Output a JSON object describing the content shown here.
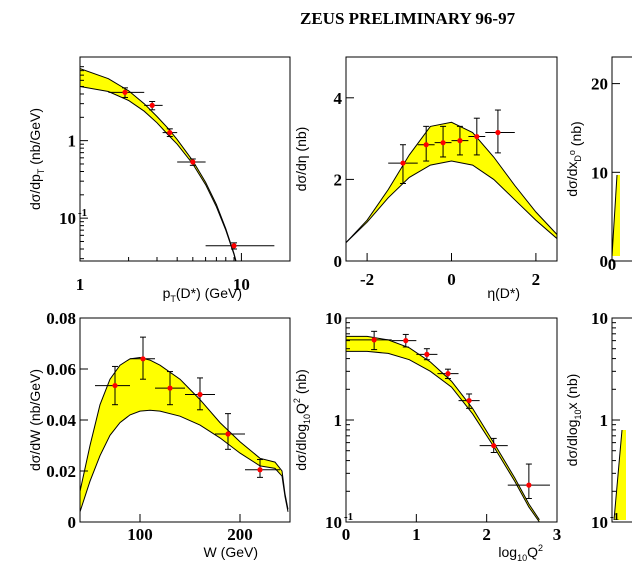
{
  "title": "ZEUS PRELIMINARY 96-97",
  "colors": {
    "band": "#ffff00",
    "point": "#ff0000",
    "line": "#000000"
  },
  "chart_data": [
    {
      "id": "pt",
      "type": "scatter",
      "ylabel_main": "dσ/dp",
      "ylabel_sub": "T",
      "ylabel_end": " (nb/GeV)",
      "xlabel_main": "p",
      "xlabel_sub": "T",
      "xlabel_end": "(D*) (GeV)",
      "xscale": "log",
      "yscale": "log",
      "xlim": [
        1,
        20
      ],
      "ylim": [
        0.028,
        12
      ],
      "xticks": [
        {
          "v": 1,
          "t": "1"
        },
        {
          "v": 10,
          "t": "10"
        }
      ],
      "yticks": [
        {
          "v": 1,
          "t": "1"
        },
        {
          "v": 0.1,
          "t": "10",
          "exp": "-1"
        }
      ],
      "points": [
        {
          "x": 1.9,
          "y": 4.2,
          "xlo": 1.5,
          "xhi": 2.5,
          "ylo": 3.6,
          "yhi": 4.8
        },
        {
          "x": 2.8,
          "y": 2.85,
          "xlo": 2.5,
          "xhi": 3.25,
          "ylo": 2.5,
          "yhi": 3.2
        },
        {
          "x": 3.6,
          "y": 1.27,
          "xlo": 3.25,
          "xhi": 4.0,
          "ylo": 1.13,
          "yhi": 1.42
        },
        {
          "x": 5.0,
          "y": 0.53,
          "xlo": 4.0,
          "xhi": 6.0,
          "ylo": 0.48,
          "yhi": 0.58
        },
        {
          "x": 9.0,
          "y": 0.044,
          "xlo": 6.0,
          "xhi": 16.0,
          "ylo": 0.04,
          "yhi": 0.048
        }
      ],
      "band_x": [
        1.0,
        1.5,
        2.0,
        2.5,
        3.0,
        3.5,
        4.0,
        5.0,
        6.0,
        7.0,
        8.0,
        9.0,
        9.5
      ],
      "band_lo": [
        5.0,
        4.3,
        3.3,
        2.4,
        1.7,
        1.2,
        0.9,
        0.5,
        0.27,
        0.14,
        0.07,
        0.034,
        0.022
      ],
      "band_hi": [
        8.5,
        6.3,
        4.4,
        3.0,
        2.05,
        1.45,
        1.03,
        0.55,
        0.29,
        0.15,
        0.073,
        0.035,
        0.023
      ]
    },
    {
      "id": "eta",
      "type": "scatter",
      "ylabel_main": "dσ/dη (nb)",
      "xlabel_main": "η(D*)",
      "xscale": "linear",
      "yscale": "linear",
      "xlim": [
        -2.5,
        2.5
      ],
      "ylim": [
        0,
        5
      ],
      "xticks": [
        {
          "v": -2,
          "t": "-2"
        },
        {
          "v": 0,
          "t": "0"
        },
        {
          "v": 2,
          "t": "2"
        }
      ],
      "yticks": [
        {
          "v": 0,
          "t": "0"
        },
        {
          "v": 2,
          "t": "2"
        },
        {
          "v": 4,
          "t": "4"
        }
      ],
      "points": [
        {
          "x": -1.15,
          "y": 2.4,
          "xlo": -1.5,
          "xhi": -0.8,
          "ylo": 1.9,
          "yhi": 2.85
        },
        {
          "x": -0.6,
          "y": 2.85,
          "xlo": -0.8,
          "xhi": -0.4,
          "ylo": 2.45,
          "yhi": 3.3
        },
        {
          "x": -0.2,
          "y": 2.9,
          "xlo": -0.4,
          "xhi": 0.0,
          "ylo": 2.55,
          "yhi": 3.3
        },
        {
          "x": 0.2,
          "y": 2.95,
          "xlo": 0.0,
          "xhi": 0.4,
          "ylo": 2.6,
          "yhi": 3.3
        },
        {
          "x": 0.6,
          "y": 3.05,
          "xlo": 0.4,
          "xhi": 0.8,
          "ylo": 2.6,
          "yhi": 3.5
        },
        {
          "x": 1.1,
          "y": 3.15,
          "xlo": 0.8,
          "xhi": 1.5,
          "ylo": 2.65,
          "yhi": 3.7
        }
      ],
      "band_x": [
        -2.5,
        -2.0,
        -1.5,
        -1.0,
        -0.5,
        0.0,
        0.5,
        1.0,
        1.5,
        2.0,
        2.5
      ],
      "band_lo": [
        0.45,
        0.95,
        1.55,
        2.05,
        2.35,
        2.45,
        2.35,
        2.0,
        1.5,
        1.0,
        0.55
      ],
      "band_hi": [
        0.45,
        1.0,
        1.75,
        2.6,
        3.3,
        3.4,
        3.15,
        2.55,
        1.85,
        1.2,
        0.65
      ]
    },
    {
      "id": "xd",
      "type": "scatter",
      "partial": true,
      "ylabel_main": "dσ/dx",
      "ylabel_sub": "D",
      "ylabel_sup": "o",
      "ylabel_end": " (nb)",
      "xscale": "linear",
      "yscale": "linear",
      "xlim": [
        0,
        1
      ],
      "ylim": [
        0,
        23
      ],
      "xticks": [
        {
          "v": 0,
          "t": "0"
        }
      ],
      "yticks": [
        {
          "v": 0,
          "t": "0"
        },
        {
          "v": 10,
          "t": "10"
        },
        {
          "v": 20,
          "t": "20"
        }
      ],
      "points": []
    },
    {
      "id": "w",
      "type": "scatter",
      "ylabel_main": "dσ/dW (nb/GeV)",
      "xlabel_main": "W (GeV)",
      "xscale": "linear",
      "yscale": "linear",
      "xlim": [
        40,
        250
      ],
      "ylim": [
        0,
        0.08
      ],
      "xticks": [
        {
          "v": 100,
          "t": "100"
        },
        {
          "v": 200,
          "t": "200"
        }
      ],
      "yticks": [
        {
          "v": 0,
          "t": "0"
        },
        {
          "v": 0.02,
          "t": "0.02"
        },
        {
          "v": 0.04,
          "t": "0.04"
        },
        {
          "v": 0.06,
          "t": "0.06"
        },
        {
          "v": 0.08,
          "t": "0.08"
        }
      ],
      "points": [
        {
          "x": 75,
          "y": 0.0535,
          "xlo": 55,
          "xhi": 90,
          "ylo": 0.046,
          "yhi": 0.061
        },
        {
          "x": 103,
          "y": 0.064,
          "xlo": 90,
          "xhi": 115,
          "ylo": 0.056,
          "yhi": 0.0725
        },
        {
          "x": 130,
          "y": 0.0525,
          "xlo": 115,
          "xhi": 145,
          "ylo": 0.046,
          "yhi": 0.059
        },
        {
          "x": 160,
          "y": 0.05,
          "xlo": 145,
          "xhi": 175,
          "ylo": 0.044,
          "yhi": 0.0565
        },
        {
          "x": 188,
          "y": 0.0345,
          "xlo": 175,
          "xhi": 205,
          "ylo": 0.0285,
          "yhi": 0.0425
        },
        {
          "x": 220,
          "y": 0.0205,
          "xlo": 205,
          "xhi": 240,
          "ylo": 0.0175,
          "yhi": 0.0245
        }
      ],
      "band_x": [
        40,
        50,
        60,
        70,
        80,
        90,
        100,
        110,
        120,
        140,
        160,
        180,
        200,
        220,
        235,
        242,
        245,
        248
      ],
      "band_lo": [
        0.004,
        0.016,
        0.026,
        0.034,
        0.039,
        0.042,
        0.0435,
        0.0438,
        0.0435,
        0.0415,
        0.038,
        0.033,
        0.027,
        0.022,
        0.021,
        0.018,
        0.01,
        0.004
      ],
      "band_hi": [
        0.012,
        0.03,
        0.046,
        0.056,
        0.0615,
        0.064,
        0.0645,
        0.0635,
        0.0615,
        0.056,
        0.048,
        0.039,
        0.0315,
        0.025,
        0.0235,
        0.02,
        0.011,
        0.005
      ]
    },
    {
      "id": "q2",
      "type": "scatter",
      "ylabel_main": "dσ/dlog",
      "ylabel_sub": "10",
      "ylabel_mid": "Q",
      "ylabel_sup": "2",
      "ylabel_end": " (nb)",
      "xlabel_main": "log",
      "xlabel_sub": "10",
      "xlabel_mid": "Q",
      "xlabel_sup": "2",
      "xscale": "linear",
      "yscale": "log",
      "xlim": [
        0,
        3
      ],
      "ylim": [
        0.1,
        10
      ],
      "xticks": [
        {
          "v": 0,
          "t": "0"
        },
        {
          "v": 1,
          "t": "1"
        },
        {
          "v": 2,
          "t": "2"
        },
        {
          "v": 3,
          "t": "3"
        }
      ],
      "yticks": [
        {
          "v": 10,
          "t": "10"
        },
        {
          "v": 1,
          "t": "1"
        },
        {
          "v": 0.1,
          "t": "10",
          "exp": "-1"
        }
      ],
      "points": [
        {
          "x": 0.4,
          "y": 6.1,
          "xlo": 0.0,
          "xhi": 0.65,
          "ylo": 4.9,
          "yhi": 7.4
        },
        {
          "x": 0.85,
          "y": 6.0,
          "xlo": 0.65,
          "xhi": 1.0,
          "ylo": 5.2,
          "yhi": 6.9
        },
        {
          "x": 1.15,
          "y": 4.4,
          "xlo": 1.0,
          "xhi": 1.3,
          "ylo": 3.9,
          "yhi": 5.0
        },
        {
          "x": 1.45,
          "y": 2.85,
          "xlo": 1.3,
          "xhi": 1.6,
          "ylo": 2.55,
          "yhi": 3.15
        },
        {
          "x": 1.75,
          "y": 1.55,
          "xlo": 1.6,
          "xhi": 1.9,
          "ylo": 1.3,
          "yhi": 1.8
        },
        {
          "x": 2.1,
          "y": 0.56,
          "xlo": 1.9,
          "xhi": 2.3,
          "ylo": 0.48,
          "yhi": 0.66
        },
        {
          "x": 2.6,
          "y": 0.23,
          "xlo": 2.3,
          "xhi": 2.9,
          "ylo": 0.17,
          "yhi": 0.37
        }
      ],
      "band_x": [
        0.0,
        0.3,
        0.6,
        0.9,
        1.2,
        1.5,
        1.8,
        2.1,
        2.4,
        2.6,
        2.75
      ],
      "band_lo": [
        4.7,
        4.7,
        4.5,
        3.9,
        3.0,
        2.1,
        1.15,
        0.55,
        0.25,
        0.14,
        0.1
      ],
      "band_hi": [
        6.6,
        6.6,
        6.1,
        5.1,
        3.7,
        2.4,
        1.3,
        0.6,
        0.27,
        0.15,
        0.105
      ]
    },
    {
      "id": "x",
      "type": "scatter",
      "partial": true,
      "ylabel_main": "dσ/dlog",
      "ylabel_sub": "10",
      "ylabel_mid": "x",
      "ylabel_end": " (nb)",
      "xscale": "linear",
      "yscale": "log",
      "xlim": [
        0,
        1
      ],
      "ylim": [
        0.1,
        10
      ],
      "xticks": [],
      "yticks": [
        {
          "v": 10,
          "t": "10"
        },
        {
          "v": 1,
          "t": "1"
        },
        {
          "v": 0.1,
          "t": "10",
          "exp": "-1"
        }
      ],
      "points": []
    }
  ]
}
